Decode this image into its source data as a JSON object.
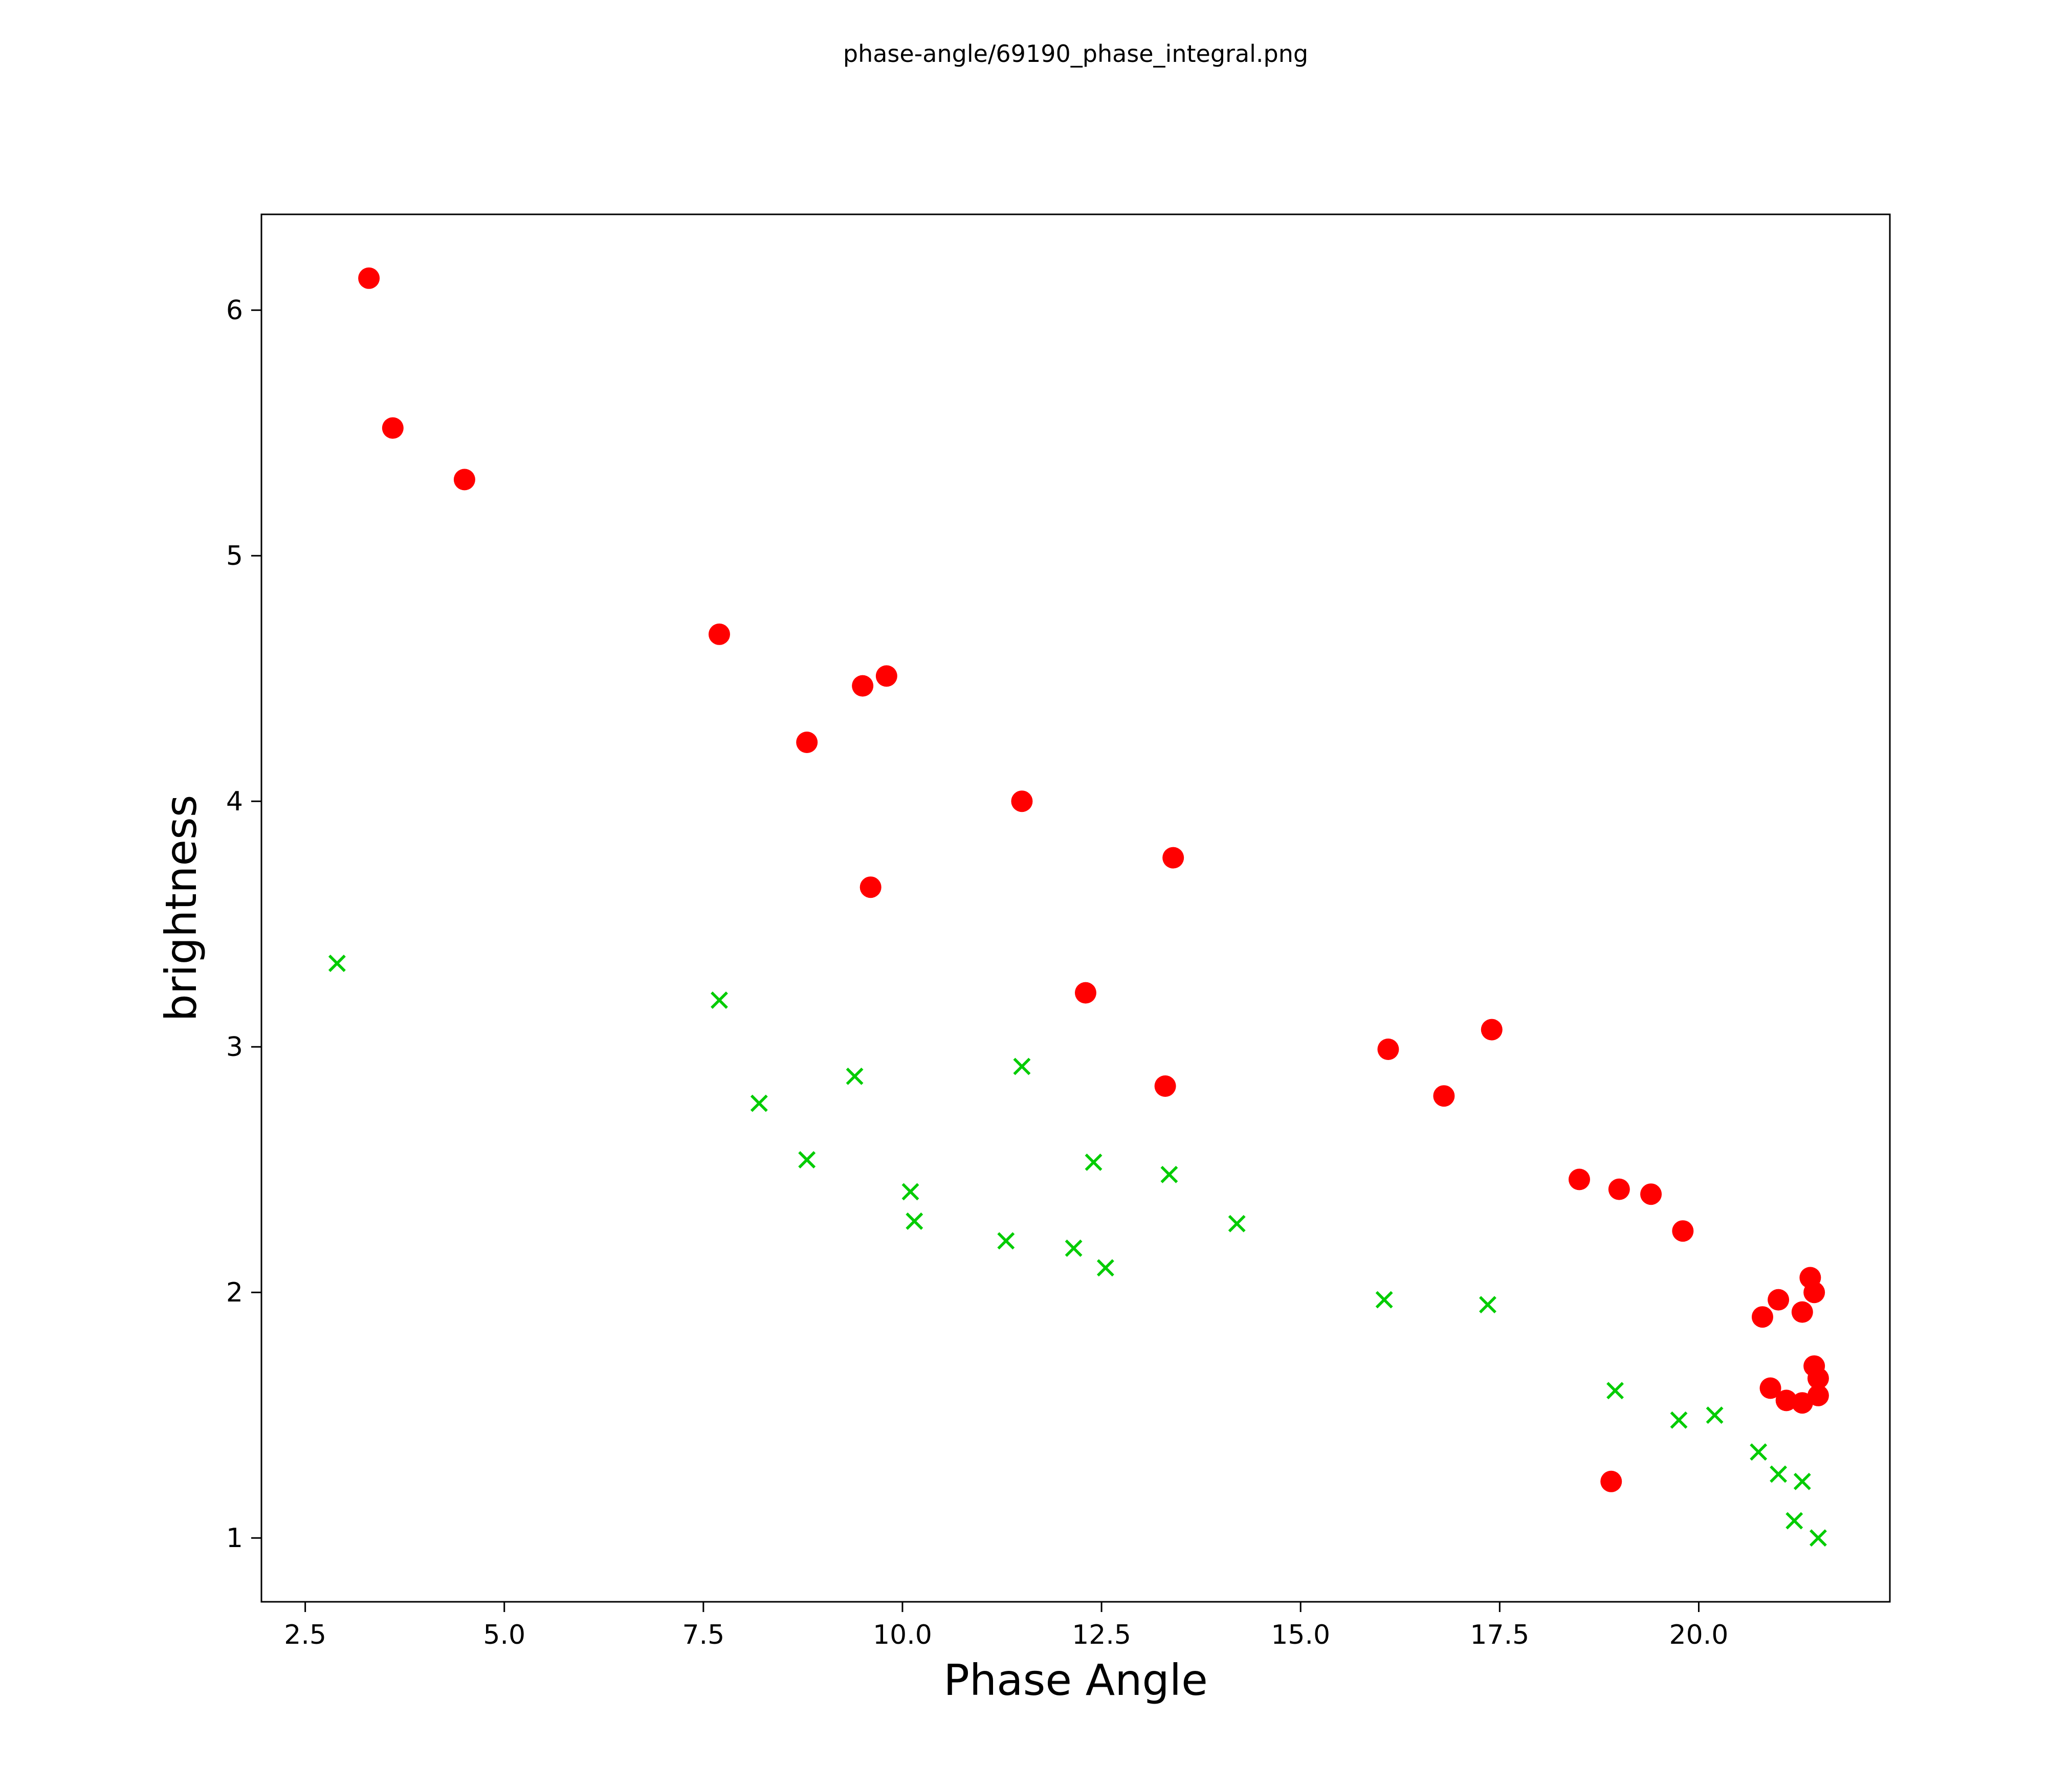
{
  "header": {
    "title": "phase-angle/69190_phase_integral.png"
  },
  "chart_data": {
    "type": "scatter",
    "title": "phase-angle/69190_phase_integral.png",
    "xlabel": "Phase Angle",
    "ylabel": "brightness",
    "xlim": [
      1.95,
      22.4
    ],
    "ylim": [
      0.74,
      6.39
    ],
    "grid": false,
    "legend": "none",
    "xticks": {
      "values": [
        2.5,
        5.0,
        7.5,
        10.0,
        12.5,
        15.0,
        17.5,
        20.0
      ],
      "labels": [
        "2.5",
        "5.0",
        "7.5",
        "10.0",
        "12.5",
        "15.0",
        "17.5",
        "20.0"
      ]
    },
    "yticks": {
      "values": [
        1,
        2,
        3,
        4,
        5,
        6
      ],
      "labels": [
        "1",
        "2",
        "3",
        "4",
        "5",
        "6"
      ]
    },
    "series": [
      {
        "name": "red-circles",
        "marker": "circle",
        "color": "#ff0000",
        "marker_radius": 21,
        "points": [
          [
            3.3,
            6.13
          ],
          [
            3.6,
            5.52
          ],
          [
            4.5,
            5.31
          ],
          [
            7.7,
            4.68
          ],
          [
            8.8,
            4.24
          ],
          [
            9.5,
            4.47
          ],
          [
            9.8,
            4.51
          ],
          [
            9.6,
            3.65
          ],
          [
            11.5,
            4.0
          ],
          [
            12.3,
            3.22
          ],
          [
            13.4,
            3.77
          ],
          [
            13.3,
            2.84
          ],
          [
            16.1,
            2.99
          ],
          [
            16.8,
            2.8
          ],
          [
            17.4,
            3.07
          ],
          [
            18.5,
            2.46
          ],
          [
            19.0,
            2.42
          ],
          [
            19.4,
            2.4
          ],
          [
            19.8,
            2.25
          ],
          [
            18.9,
            1.23
          ],
          [
            20.8,
            1.9
          ],
          [
            21.0,
            1.97
          ],
          [
            21.3,
            1.92
          ],
          [
            21.4,
            2.06
          ],
          [
            21.45,
            2.0
          ],
          [
            20.9,
            1.61
          ],
          [
            21.1,
            1.56
          ],
          [
            21.3,
            1.55
          ],
          [
            21.45,
            1.7
          ],
          [
            21.5,
            1.65
          ],
          [
            21.5,
            1.58
          ]
        ]
      },
      {
        "name": "green-crosses",
        "marker": "x",
        "color": "#00cc00",
        "marker_half_size": 15,
        "points": [
          [
            2.9,
            3.34
          ],
          [
            7.7,
            3.19
          ],
          [
            8.2,
            2.77
          ],
          [
            8.8,
            2.54
          ],
          [
            9.4,
            2.88
          ],
          [
            10.1,
            2.41
          ],
          [
            10.15,
            2.29
          ],
          [
            11.5,
            2.92
          ],
          [
            11.3,
            2.21
          ],
          [
            12.15,
            2.18
          ],
          [
            12.4,
            2.53
          ],
          [
            12.55,
            2.1
          ],
          [
            13.35,
            2.48
          ],
          [
            14.2,
            2.28
          ],
          [
            16.05,
            1.97
          ],
          [
            17.35,
            1.95
          ],
          [
            18.95,
            1.6
          ],
          [
            19.75,
            1.48
          ],
          [
            20.2,
            1.5
          ],
          [
            20.75,
            1.35
          ],
          [
            21.0,
            1.26
          ],
          [
            21.3,
            1.23
          ],
          [
            21.2,
            1.07
          ],
          [
            21.5,
            1.0
          ]
        ]
      }
    ]
  }
}
